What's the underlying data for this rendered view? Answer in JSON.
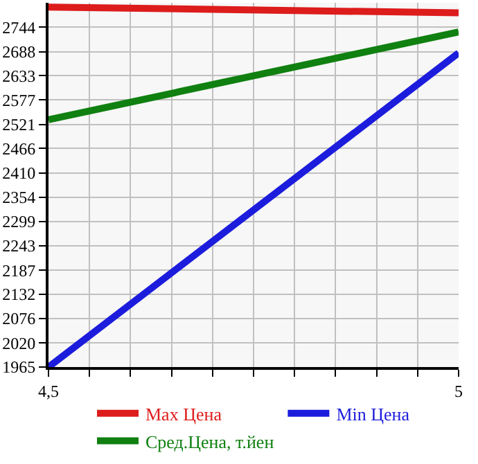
{
  "chart_data": {
    "type": "line",
    "x": [
      4.5,
      5
    ],
    "series": [
      {
        "name": "Max Цена",
        "color": "#dd1c1c",
        "values": [
          2790,
          2777
        ]
      },
      {
        "name": "Min Цена",
        "color": "#1c1cdd",
        "values": [
          1965,
          2685
        ]
      },
      {
        "name": "Сред.Цена, т.йен",
        "color": "#108010",
        "values": [
          2532,
          2733
        ]
      }
    ],
    "xlim": [
      4.5,
      5
    ],
    "xticks": [
      {
        "value": 4.5,
        "label": "4,5"
      },
      {
        "value": 4.55,
        "label": null
      },
      {
        "value": 4.6,
        "label": null
      },
      {
        "value": 4.65,
        "label": null
      },
      {
        "value": 4.7,
        "label": null
      },
      {
        "value": 4.75,
        "label": null
      },
      {
        "value": 4.8,
        "label": null
      },
      {
        "value": 4.85,
        "label": null
      },
      {
        "value": 4.9,
        "label": null
      },
      {
        "value": 4.95,
        "label": null
      },
      {
        "value": 5,
        "label": "5"
      }
    ],
    "ylim": [
      1965,
      2800
    ],
    "yticks": [
      1965,
      2020,
      2076,
      2132,
      2187,
      2243,
      2299,
      2354,
      2410,
      2466,
      2521,
      2577,
      2633,
      2688,
      2744
    ],
    "grid": true,
    "legend": "bottom",
    "marker": "none",
    "line_style": "solid"
  }
}
